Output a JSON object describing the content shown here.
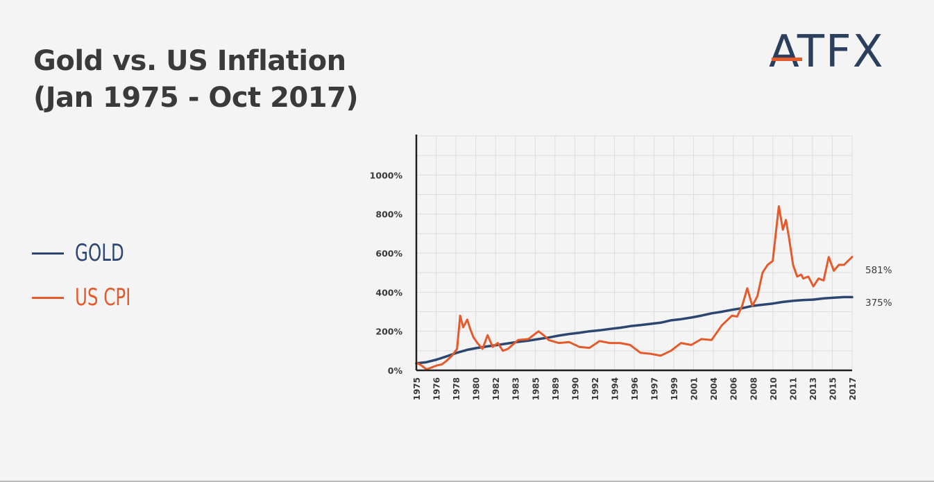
{
  "title": {
    "line1": "Gold vs. US Inflation",
    "line2": "(Jan 1975 - Oct 2017)"
  },
  "logo": {
    "text": "ATFX",
    "colors": {
      "text": "#2c3e5e",
      "accent": "#e55a2b"
    }
  },
  "legend": [
    {
      "label": "GOLD",
      "color": "#2c4670"
    },
    {
      "label": "US CPI",
      "color": "#e55a2b"
    }
  ],
  "chart_data": {
    "type": "line",
    "title": "",
    "xlabel": "",
    "ylabel": "",
    "ylim": [
      0,
      1200
    ],
    "xlim": [
      1975,
      2017.8
    ],
    "yticks": [
      0,
      200,
      400,
      600,
      800,
      1000
    ],
    "ytick_labels": [
      "0%",
      "200%",
      "400%",
      "600%",
      "800%",
      "1000%"
    ],
    "xtick_labels": [
      "1975",
      "1976",
      "1978",
      "1980",
      "1982",
      "1983",
      "1985",
      "1989",
      "1990",
      "1992",
      "1994",
      "1996",
      "1997",
      "1999",
      "2001",
      "2004",
      "2006",
      "2008",
      "2010",
      "2011",
      "2013",
      "2015",
      "2017"
    ],
    "grid": true,
    "series": [
      {
        "name": "GOLD",
        "color": "#2c4670",
        "end_label": "375%",
        "x": [
          1975,
          1976,
          1977,
          1978,
          1979,
          1980,
          1981,
          1982,
          1983,
          1984,
          1985,
          1986,
          1987,
          1988,
          1989,
          1990,
          1991,
          1992,
          1993,
          1994,
          1995,
          1996,
          1997,
          1998,
          1999,
          2000,
          2001,
          2002,
          2003,
          2004,
          2005,
          2006,
          2007,
          2008,
          2009,
          2010,
          2011,
          2012,
          2013,
          2014,
          2015,
          2016,
          2017,
          2017.8
        ],
        "values": [
          36,
          42,
          55,
          72,
          90,
          105,
          115,
          123,
          130,
          138,
          146,
          152,
          160,
          168,
          178,
          186,
          192,
          200,
          205,
          212,
          218,
          226,
          232,
          238,
          244,
          256,
          262,
          270,
          280,
          292,
          300,
          310,
          318,
          330,
          336,
          342,
          350,
          356,
          360,
          362,
          368,
          372,
          375,
          375
        ]
      },
      {
        "name": "US CPI",
        "color": "#e55a2b",
        "end_label": "581%",
        "x": [
          1975,
          1975.5,
          1976,
          1976.5,
          1977,
          1977.5,
          1978,
          1978.5,
          1979,
          1979.3,
          1979.6,
          1980,
          1980.3,
          1980.6,
          1981,
          1981.5,
          1982,
          1982.5,
          1983,
          1983.5,
          1984,
          1985,
          1986,
          1987,
          1987.5,
          1988,
          1989,
          1990,
          1991,
          1992,
          1993,
          1994,
          1995,
          1996,
          1997,
          1998,
          1999,
          2000,
          2001,
          2002,
          2003,
          2004,
          2005,
          2006,
          2006.5,
          2007,
          2007.5,
          2008,
          2008.5,
          2009,
          2009.5,
          2010,
          2010.3,
          2010.6,
          2011,
          2011.3,
          2011.6,
          2012,
          2012.4,
          2012.8,
          2013,
          2013.5,
          2014,
          2014.5,
          2015,
          2015.5,
          2016,
          2016.5,
          2017,
          2017.8
        ],
        "values": [
          40,
          25,
          5,
          15,
          25,
          30,
          50,
          75,
          110,
          280,
          220,
          260,
          210,
          170,
          140,
          110,
          180,
          120,
          140,
          100,
          110,
          155,
          160,
          200,
          180,
          155,
          140,
          145,
          120,
          115,
          150,
          140,
          140,
          130,
          90,
          85,
          75,
          100,
          140,
          130,
          160,
          155,
          230,
          280,
          275,
          330,
          420,
          330,
          380,
          500,
          540,
          560,
          700,
          840,
          720,
          770,
          680,
          540,
          480,
          490,
          470,
          480,
          430,
          470,
          460,
          580,
          510,
          540,
          540,
          581
        ]
      }
    ]
  }
}
